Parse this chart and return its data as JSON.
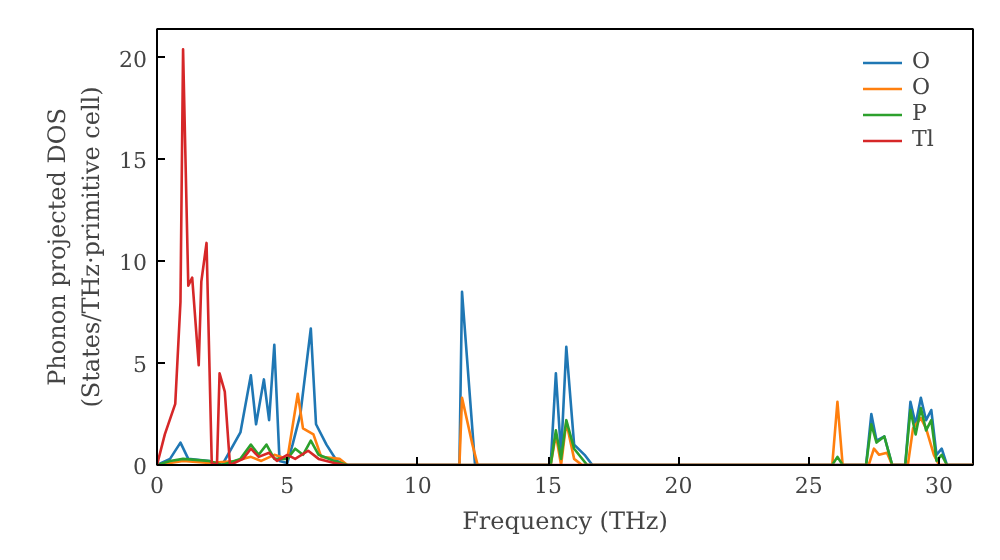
{
  "chart_data": {
    "type": "line",
    "xlabel": "Frequency (THz)",
    "ylabel": "Phonon projected DOS\n(States/THz·primitive cell)",
    "xlim": [
      0,
      31.3
    ],
    "ylim": [
      0,
      21.4
    ],
    "xticks": [
      0,
      5,
      10,
      15,
      20,
      25,
      30
    ],
    "yticks": [
      0,
      5,
      10,
      15,
      20
    ],
    "grid": false,
    "legend": "top right",
    "series": [
      {
        "name": "O",
        "color": "#1f77b4",
        "x": [
          0,
          0.5,
          0.9,
          1.2,
          2.0,
          2.5,
          3.2,
          3.6,
          3.8,
          4.1,
          4.3,
          4.5,
          4.7,
          5.0,
          5.2,
          5.5,
          5.9,
          6.1,
          6.5,
          6.9,
          7.3,
          11.6,
          11.7,
          12.2,
          15.1,
          15.3,
          15.5,
          15.7,
          16.0,
          16.4,
          16.7,
          25.9,
          26.3,
          27.2,
          27.4,
          27.6,
          27.9,
          28.2,
          28.7,
          28.9,
          29.1,
          29.3,
          29.5,
          29.7,
          29.9,
          30.1,
          30.3,
          31.3
        ],
        "values": [
          0,
          0.3,
          1.1,
          0.3,
          0.2,
          0,
          1.6,
          4.4,
          2.0,
          4.2,
          2.2,
          5.9,
          0.2,
          0.1,
          1.0,
          2.5,
          6.7,
          2.0,
          1.0,
          0.2,
          0,
          0,
          8.5,
          0,
          0,
          4.5,
          0.5,
          5.8,
          1.0,
          0.5,
          0,
          0,
          0,
          0,
          2.5,
          1.2,
          1.4,
          0,
          0,
          3.1,
          2.0,
          3.3,
          2.2,
          2.7,
          0.5,
          0.8,
          0,
          0
        ]
      },
      {
        "name": "O",
        "color": "#ff7f0e",
        "x": [
          0,
          1,
          2,
          3,
          3.6,
          4,
          4.5,
          5,
          5.4,
          5.6,
          6.0,
          6.3,
          7,
          7.3,
          11.6,
          11.7,
          12.1,
          12.3,
          15.1,
          15.3,
          15.5,
          15.7,
          16,
          16.3,
          25.9,
          26.1,
          26.3,
          27.3,
          27.5,
          27.7,
          28,
          28.2,
          28.8,
          29,
          29.3,
          29.5,
          29.8,
          30,
          31.3
        ],
        "values": [
          0,
          0.2,
          0.1,
          0.2,
          0.4,
          0.2,
          0.5,
          0.3,
          3.5,
          1.8,
          1.5,
          0.4,
          0.3,
          0,
          0,
          3.3,
          1.0,
          0,
          0,
          1.5,
          0,
          2.1,
          0.3,
          0,
          0,
          3.1,
          0,
          0,
          0.8,
          0.5,
          0.6,
          0,
          0,
          1.8,
          2.3,
          1.8,
          0.5,
          0,
          0
        ]
      },
      {
        "name": "P",
        "color": "#2ca02c",
        "x": [
          0,
          0.5,
          1,
          2,
          2.5,
          3.2,
          3.6,
          3.9,
          4.2,
          4.5,
          5,
          5.3,
          5.6,
          5.9,
          6.2,
          6.8,
          7.3,
          15.1,
          15.3,
          15.5,
          15.7,
          16,
          16.5,
          25.9,
          26.1,
          26.3,
          27.2,
          27.4,
          27.6,
          27.9,
          28.2,
          28.7,
          28.9,
          29.1,
          29.3,
          29.5,
          29.7,
          29.9,
          30.1,
          30.3,
          31.3
        ],
        "values": [
          0,
          0.2,
          0.3,
          0.2,
          0,
          0.3,
          1.0,
          0.5,
          1.0,
          0.3,
          0.3,
          0.8,
          0.5,
          1.2,
          0.5,
          0.2,
          0,
          0,
          1.7,
          0.3,
          2.2,
          0.8,
          0,
          0,
          0.4,
          0,
          0,
          2.0,
          1.1,
          1.4,
          0,
          0,
          2.7,
          1.5,
          2.8,
          1.7,
          2.2,
          0.2,
          0.5,
          0,
          0
        ]
      },
      {
        "name": "Tl",
        "color": "#d62728",
        "x": [
          0,
          0.3,
          0.7,
          0.9,
          1.0,
          1.2,
          1.35,
          1.6,
          1.7,
          1.9,
          2.1,
          2.3,
          2.4,
          2.6,
          2.8,
          3.3,
          3.6,
          3.9,
          4.3,
          4.6,
          5.0,
          5.3,
          5.8,
          6.2,
          6.8,
          7.2,
          31.3
        ],
        "values": [
          0,
          1.5,
          3,
          8,
          20.4,
          8.8,
          9.2,
          4.9,
          9,
          10.9,
          0.1,
          0,
          4.5,
          3.6,
          0,
          0.3,
          0.8,
          0.4,
          0.6,
          0.2,
          0.5,
          0.3,
          0.7,
          0.3,
          0.1,
          0,
          0
        ]
      }
    ]
  }
}
